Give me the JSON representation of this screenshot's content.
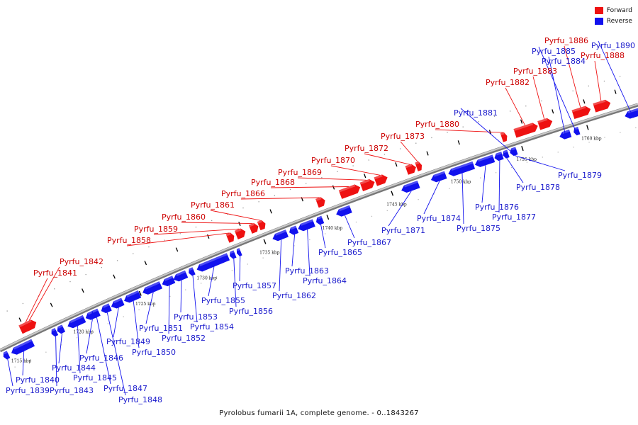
{
  "legend": {
    "forward": {
      "label": "Forward",
      "color": "#ee1111"
    },
    "reverse": {
      "label": "Reverse",
      "color": "#1111ee"
    }
  },
  "caption": "Pyrolobus fumarii 1A, complete genome. - 0..1843267",
  "scale_labels": [
    "1715 kbp",
    "1720 kbp",
    "1725 kbp",
    "1730 kbp",
    "1735 kbp",
    "1740 kbp",
    "1745 kbp",
    "1750 kbp",
    "1755 kbp",
    "1760 kbp"
  ],
  "genes": [
    {
      "name": "Pyrfu_1839",
      "strand": "reverse"
    },
    {
      "name": "Pyrfu_1840",
      "strand": "reverse"
    },
    {
      "name": "Pyrfu_1841",
      "strand": "forward"
    },
    {
      "name": "Pyrfu_1842",
      "strand": "forward"
    },
    {
      "name": "Pyrfu_1843",
      "strand": "reverse"
    },
    {
      "name": "Pyrfu_1844",
      "strand": "reverse"
    },
    {
      "name": "Pyrfu_1845",
      "strand": "reverse"
    },
    {
      "name": "Pyrfu_1846",
      "strand": "reverse"
    },
    {
      "name": "Pyrfu_1847",
      "strand": "reverse"
    },
    {
      "name": "Pyrfu_1848",
      "strand": "reverse"
    },
    {
      "name": "Pyrfu_1849",
      "strand": "reverse"
    },
    {
      "name": "Pyrfu_1850",
      "strand": "reverse"
    },
    {
      "name": "Pyrfu_1851",
      "strand": "reverse"
    },
    {
      "name": "Pyrfu_1852",
      "strand": "reverse"
    },
    {
      "name": "Pyrfu_1853",
      "strand": "reverse"
    },
    {
      "name": "Pyrfu_1854",
      "strand": "reverse"
    },
    {
      "name": "Pyrfu_1855",
      "strand": "reverse"
    },
    {
      "name": "Pyrfu_1856",
      "strand": "reverse"
    },
    {
      "name": "Pyrfu_1857",
      "strand": "reverse"
    },
    {
      "name": "Pyrfu_1858",
      "strand": "forward"
    },
    {
      "name": "Pyrfu_1859",
      "strand": "forward"
    },
    {
      "name": "Pyrfu_1860",
      "strand": "forward"
    },
    {
      "name": "Pyrfu_1861",
      "strand": "forward"
    },
    {
      "name": "Pyrfu_1862",
      "strand": "reverse"
    },
    {
      "name": "Pyrfu_1863",
      "strand": "reverse"
    },
    {
      "name": "Pyrfu_1864",
      "strand": "reverse"
    },
    {
      "name": "Pyrfu_1865",
      "strand": "reverse"
    },
    {
      "name": "Pyrfu_1866",
      "strand": "forward"
    },
    {
      "name": "Pyrfu_1867",
      "strand": "reverse"
    },
    {
      "name": "Pyrfu_1868",
      "strand": "forward"
    },
    {
      "name": "Pyrfu_1869",
      "strand": "forward"
    },
    {
      "name": "Pyrfu_1870",
      "strand": "forward"
    },
    {
      "name": "Pyrfu_1871",
      "strand": "reverse"
    },
    {
      "name": "Pyrfu_1872",
      "strand": "forward"
    },
    {
      "name": "Pyrfu_1873",
      "strand": "forward"
    },
    {
      "name": "Pyrfu_1874",
      "strand": "reverse"
    },
    {
      "name": "Pyrfu_1875",
      "strand": "reverse"
    },
    {
      "name": "Pyrfu_1876",
      "strand": "reverse"
    },
    {
      "name": "Pyrfu_1877",
      "strand": "reverse"
    },
    {
      "name": "Pyrfu_1878",
      "strand": "reverse"
    },
    {
      "name": "Pyrfu_1879",
      "strand": "reverse"
    },
    {
      "name": "Pyrfu_1880",
      "strand": "forward"
    },
    {
      "name": "Pyrfu_1881",
      "strand": "reverse"
    },
    {
      "name": "Pyrfu_1882",
      "strand": "forward"
    },
    {
      "name": "Pyrfu_1883",
      "strand": "forward"
    },
    {
      "name": "Pyrfu_1884",
      "strand": "reverse"
    },
    {
      "name": "Pyrfu_1885",
      "strand": "reverse"
    },
    {
      "name": "Pyrfu_1886",
      "strand": "forward"
    },
    {
      "name": "Pyrfu_1888",
      "strand": "forward"
    },
    {
      "name": "Pyrfu_1890",
      "strand": "reverse"
    }
  ]
}
